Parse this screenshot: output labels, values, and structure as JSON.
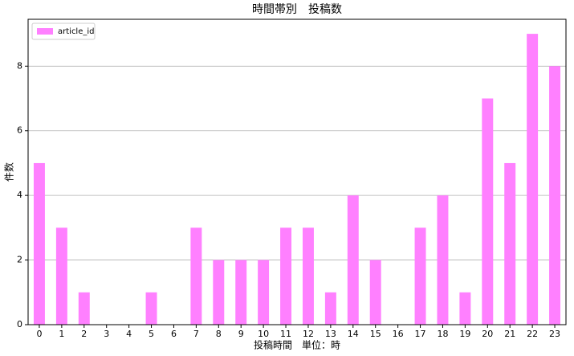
{
  "chart_data": {
    "type": "bar",
    "title": "時間帯別　投稿数",
    "xlabel": "投稿時間　単位：時",
    "ylabel": "件数",
    "categories": [
      "0",
      "1",
      "2",
      "3",
      "4",
      "5",
      "6",
      "7",
      "8",
      "9",
      "10",
      "11",
      "12",
      "13",
      "14",
      "15",
      "16",
      "17",
      "18",
      "19",
      "20",
      "21",
      "22",
      "23"
    ],
    "series": [
      {
        "name": "article_id",
        "color": "#ff80ff",
        "values": [
          5,
          3,
          1,
          0,
          0,
          1,
          0,
          3,
          2,
          2,
          2,
          3,
          3,
          1,
          4,
          2,
          0,
          3,
          4,
          1,
          7,
          5,
          9,
          8
        ]
      }
    ],
    "ylim": [
      0,
      9.45
    ],
    "yticks": [
      0,
      2,
      4,
      6,
      8
    ],
    "grid": true,
    "legend": "upper-left"
  }
}
